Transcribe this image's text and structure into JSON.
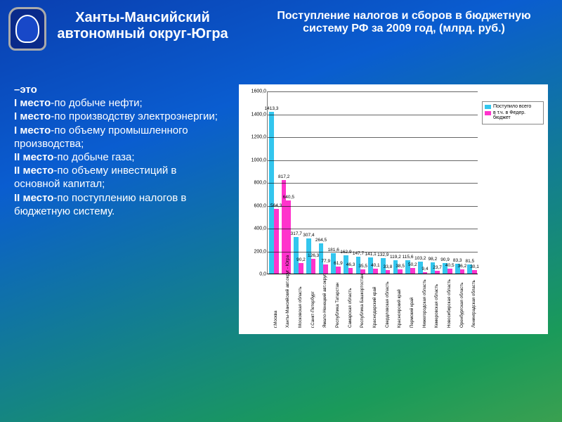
{
  "emblem": {
    "border_color": "#aaaaaa",
    "fill": "#0a2a8a",
    "inner": "#1848c8"
  },
  "left_title": {
    "text": "Ханты-Мансийский автономный округ-Югра",
    "fontsize": 20,
    "color": "#ffffff"
  },
  "right_title": {
    "text": "Поступление налогов и сборов в бюджетную систему РФ за 2009 год, (млрд. руб.)",
    "fontsize": 16,
    "color": "#ffffff"
  },
  "body": {
    "fontsize": 15,
    "color": "#ffffff",
    "lines": [
      {
        "bold": "–это",
        "normal": ""
      },
      {
        "bold": "I место",
        "normal": "-по добыче нефти;"
      },
      {
        "bold": "I место",
        "normal": "-по производству электроэнергии;"
      },
      {
        "bold": "I место",
        "normal": "-по объему промышленного производства;"
      },
      {
        "bold": "II место",
        "normal": "-по добыче газа;"
      },
      {
        "bold": "II место",
        "normal": "-по объему инвестиций в основной капитал;"
      },
      {
        "bold": "II место",
        "normal": "-по поступлению налогов в бюджетную систему."
      }
    ]
  },
  "chart": {
    "type": "bar",
    "background_color": "#ffffff",
    "ylim": [
      0,
      1600
    ],
    "ytick_step": 200,
    "y_ticks": [
      "0,0",
      "200,0",
      "400,0",
      "600,0",
      "800,0",
      "1000,0",
      "1200,0",
      "1400,0",
      "1600,0"
    ],
    "grid_color": "#000000",
    "axis_fontsize": 7,
    "label_fontsize": 6.2,
    "value_fontsize": 6.5,
    "legend": {
      "items": [
        {
          "label": "Поступило всего",
          "color": "#33c6ee"
        },
        {
          "label": "в т.ч. в Федер. бюджет",
          "color": "#ff33cc"
        }
      ]
    },
    "bar_width_rel": 0.38,
    "series_colors": [
      "#33c6ee",
      "#ff33cc"
    ],
    "highlight_color": "#ff33cc",
    "categories": [
      {
        "label": "г.Москва",
        "total": 1413.3,
        "federal": 564.3,
        "highlight": false
      },
      {
        "label": "Ханты-Мансийский авт.округ - Югра",
        "total": 817.2,
        "federal": 640.5,
        "highlight": true
      },
      {
        "label": "Московская область",
        "total": 317.7,
        "federal": 90.2,
        "highlight": false
      },
      {
        "label": "г.Санкт-Петербург",
        "total": 307.4,
        "federal": 126.3,
        "highlight": false
      },
      {
        "label": "Ямало-Ненецкий авт.округ",
        "total": 264.5,
        "federal": 77.9,
        "highlight": false
      },
      {
        "label": "Республика Татарстан",
        "total": 181.6,
        "federal": 61.9,
        "highlight": false
      },
      {
        "label": "Самарская область",
        "total": 162.9,
        "federal": 46.3,
        "highlight": false
      },
      {
        "label": "Республика Башкортостан",
        "total": 147.7,
        "federal": 35.5,
        "highlight": false
      },
      {
        "label": "Краснодарский край",
        "total": 141.1,
        "federal": 40.1,
        "highlight": false
      },
      {
        "label": "Свердловская область",
        "total": 132.9,
        "federal": 33.8,
        "highlight": false
      },
      {
        "label": "Красноярский край",
        "total": 119.2,
        "federal": 38.5,
        "highlight": false
      },
      {
        "label": "Пермский край",
        "total": 115.6,
        "federal": 50.2,
        "highlight": false
      },
      {
        "label": "Нижегородская область",
        "total": 103.2,
        "federal": 9.4,
        "highlight": false
      },
      {
        "label": "Кемеровская область",
        "total": 98.2,
        "federal": 23.7,
        "highlight": false
      },
      {
        "label": "Новосибирская область",
        "total": 90.9,
        "federal": 40.5,
        "highlight": false
      },
      {
        "label": "Оренбургская область",
        "total": 83.3,
        "federal": 36.2,
        "highlight": false
      },
      {
        "label": "Ленинградская область",
        "total": 81.5,
        "federal": 30.1,
        "highlight": false
      }
    ]
  }
}
